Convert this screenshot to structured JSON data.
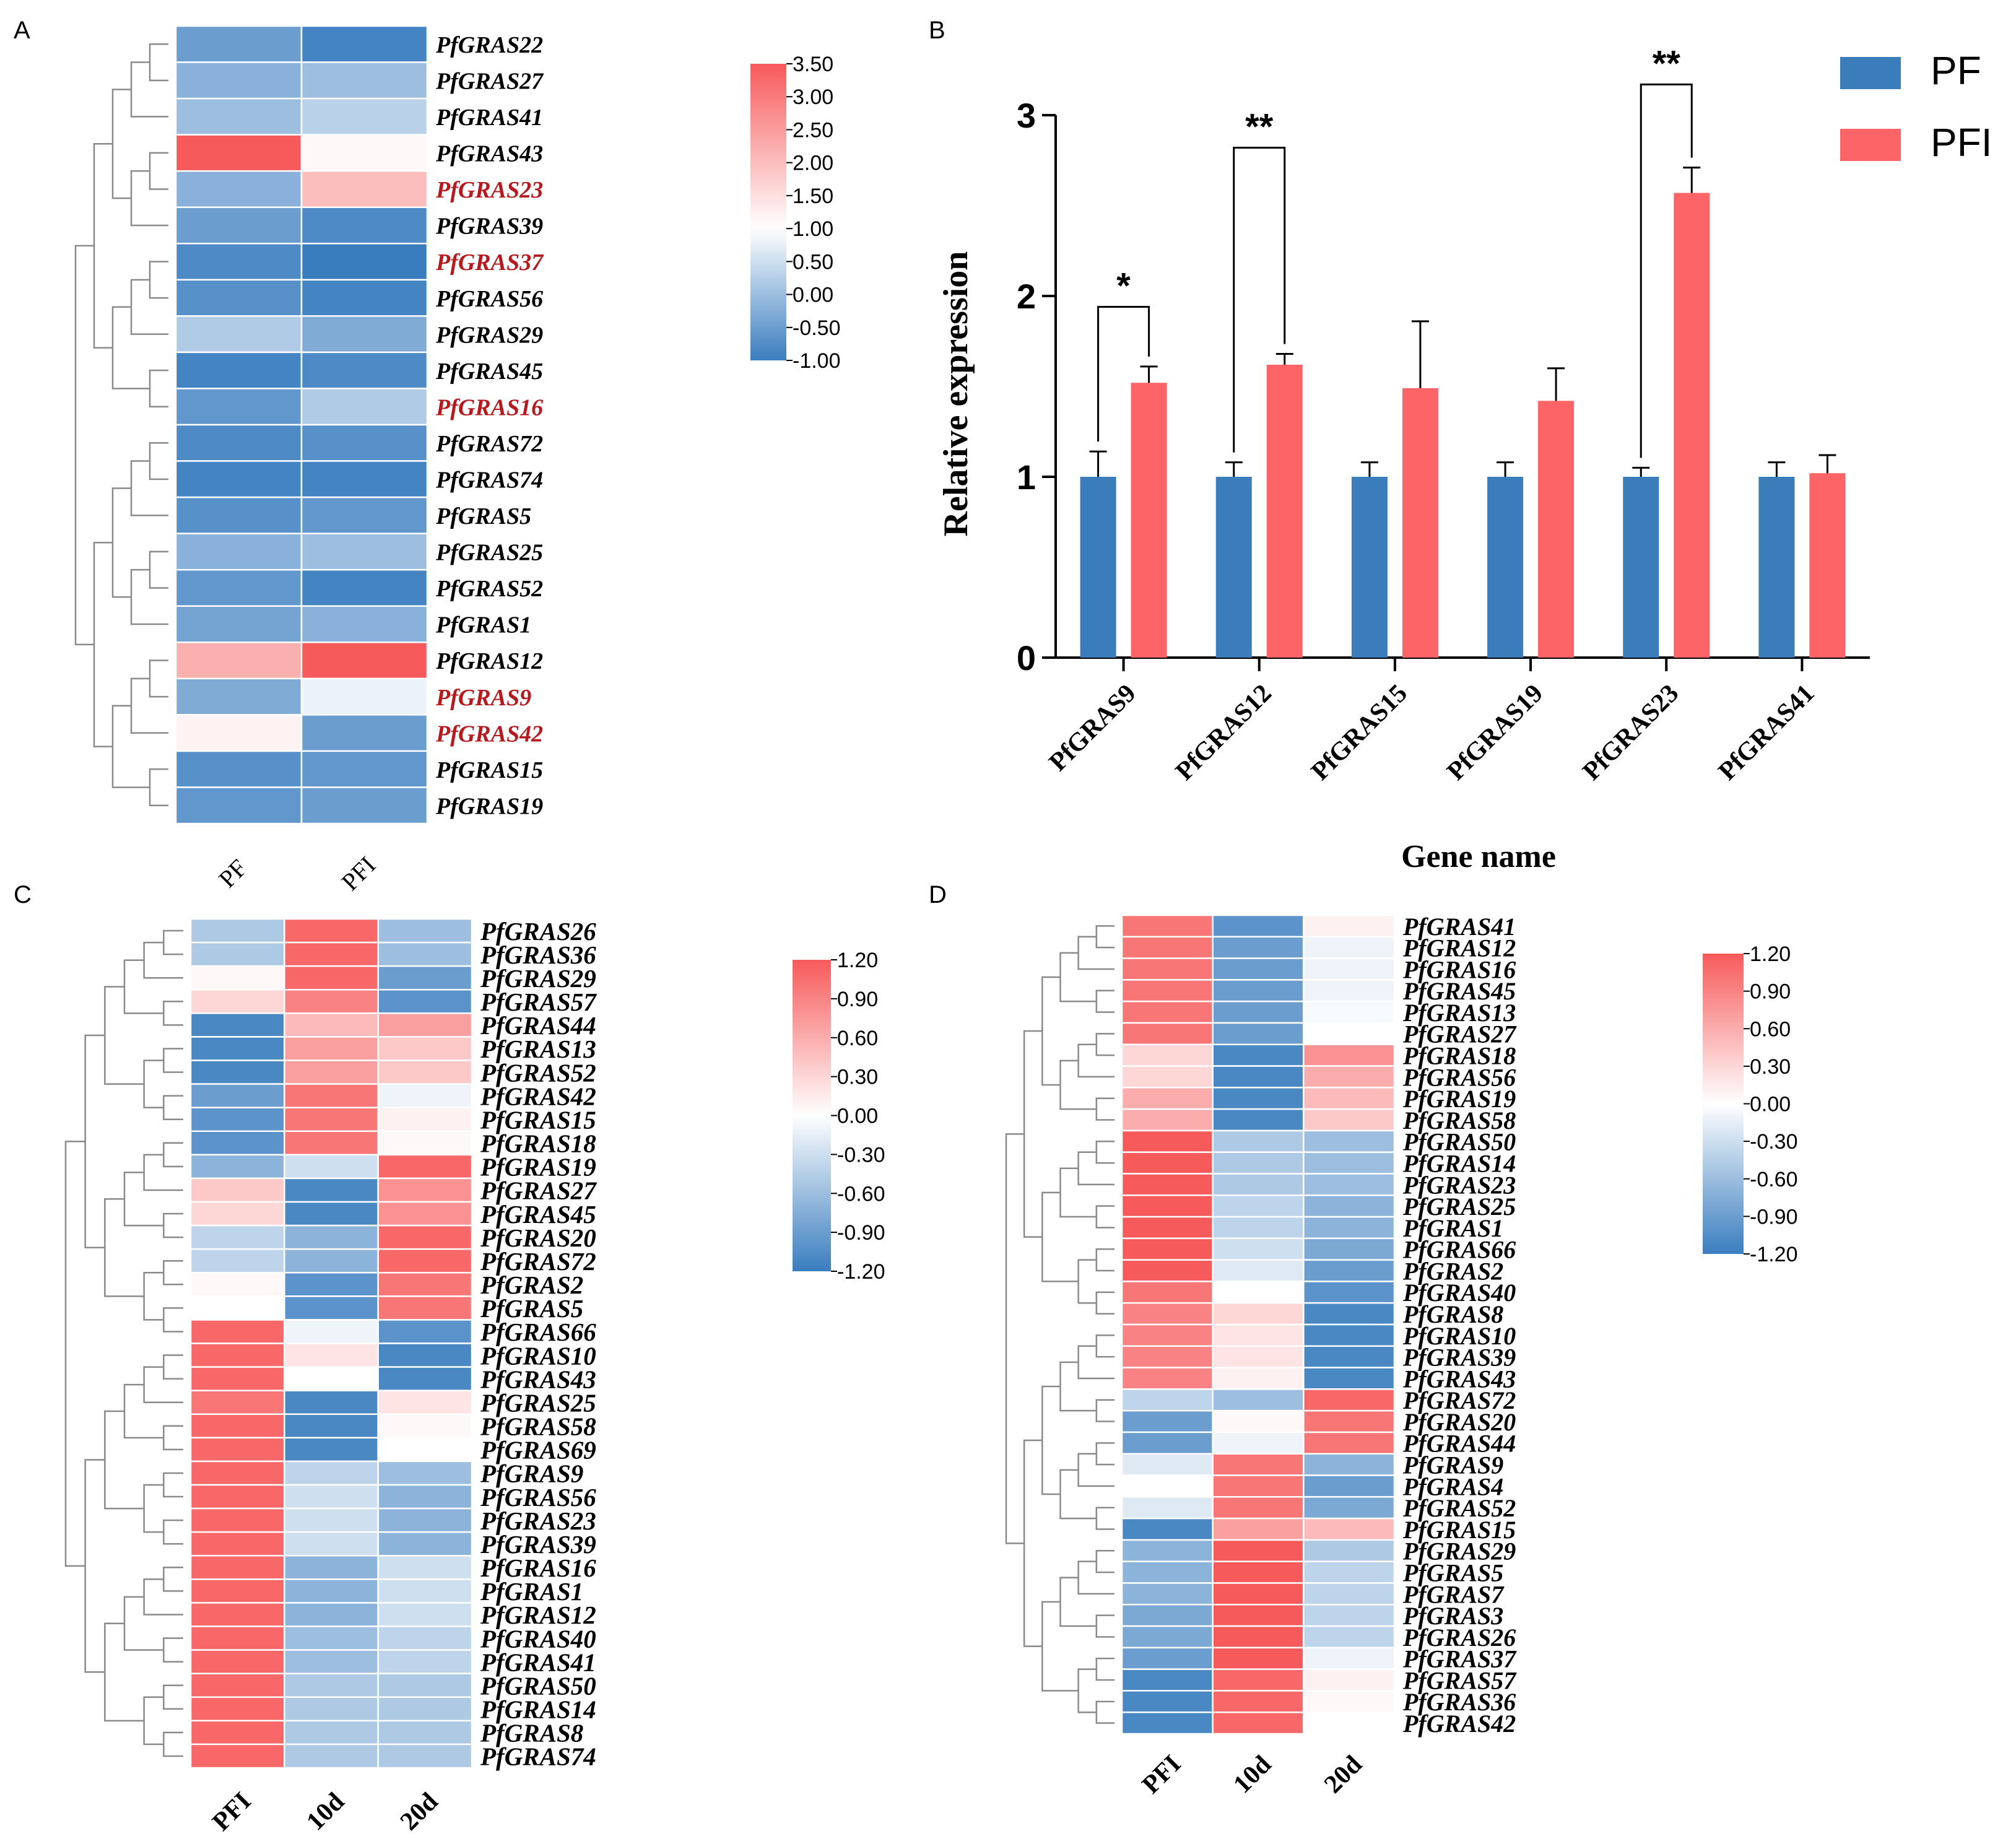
{
  "colors": {
    "high": "#f75a5b",
    "mid": "#ffffff",
    "low": "#3a7dbf",
    "bar_pf": "#3b7dba",
    "bar_pfi": "#fc6467",
    "highlight_text": "#b61a1e"
  },
  "panels": {
    "A": {
      "letter": "A",
      "columns": [
        "PF",
        "PFI"
      ],
      "colorbar": {
        "min": -1.0,
        "max": 3.5,
        "mid": 1.0,
        "ticks": [
          "3.50",
          "3.00",
          "2.50",
          "2.00",
          "1.50",
          "1.00",
          "0.50",
          "0.00",
          "-0.50",
          "-1.00"
        ]
      },
      "rows": [
        {
          "gene": "PfGRAS22",
          "values": [
            -0.5,
            -0.9
          ],
          "highlight": false
        },
        {
          "gene": "PfGRAS27",
          "values": [
            -0.2,
            0.0
          ],
          "highlight": false
        },
        {
          "gene": "PfGRAS41",
          "values": [
            0.0,
            0.3
          ],
          "highlight": false
        },
        {
          "gene": "PfGRAS43",
          "values": [
            3.5,
            1.1
          ],
          "highlight": false
        },
        {
          "gene": "PfGRAS23",
          "values": [
            -0.2,
            2.0
          ],
          "highlight": true
        },
        {
          "gene": "PfGRAS39",
          "values": [
            -0.5,
            -0.8
          ],
          "highlight": false
        },
        {
          "gene": "PfGRAS37",
          "values": [
            -0.8,
            -1.0
          ],
          "highlight": true
        },
        {
          "gene": "PfGRAS56",
          "values": [
            -0.7,
            -0.9
          ],
          "highlight": false
        },
        {
          "gene": "PfGRAS29",
          "values": [
            0.2,
            -0.3
          ],
          "highlight": false
        },
        {
          "gene": "PfGRAS45",
          "values": [
            -0.9,
            -0.8
          ],
          "highlight": false
        },
        {
          "gene": "PfGRAS16",
          "values": [
            -0.6,
            0.2
          ],
          "highlight": true
        },
        {
          "gene": "PfGRAS72",
          "values": [
            -0.8,
            -0.7
          ],
          "highlight": false
        },
        {
          "gene": "PfGRAS74",
          "values": [
            -0.9,
            -0.9
          ],
          "highlight": false
        },
        {
          "gene": "PfGRAS5",
          "values": [
            -0.7,
            -0.6
          ],
          "highlight": false
        },
        {
          "gene": "PfGRAS25",
          "values": [
            -0.2,
            0.0
          ],
          "highlight": false
        },
        {
          "gene": "PfGRAS52",
          "values": [
            -0.6,
            -0.9
          ],
          "highlight": false
        },
        {
          "gene": "PfGRAS1",
          "values": [
            -0.4,
            -0.2
          ],
          "highlight": false
        },
        {
          "gene": "PfGRAS12",
          "values": [
            2.2,
            3.5
          ],
          "highlight": false
        },
        {
          "gene": "PfGRAS9",
          "values": [
            -0.3,
            0.8
          ],
          "highlight": true
        },
        {
          "gene": "PfGRAS42",
          "values": [
            1.2,
            -0.5
          ],
          "highlight": true
        },
        {
          "gene": "PfGRAS15",
          "values": [
            -0.7,
            -0.6
          ],
          "highlight": false
        },
        {
          "gene": "PfGRAS19",
          "values": [
            -0.6,
            -0.5
          ],
          "highlight": false
        }
      ]
    },
    "B": {
      "letter": "B",
      "chart_data": {
        "type": "bar",
        "title": "",
        "xlabel": "Gene name",
        "ylabel": "Relative expression",
        "ylim": [
          0,
          3
        ],
        "yticks": [
          "0",
          "1",
          "2",
          "3"
        ],
        "categories": [
          "PfGRAS9",
          "PfGRAS12",
          "PfGRAS15",
          "PfGRAS19",
          "PfGRAS23",
          "PfGRAS41"
        ],
        "series": [
          {
            "name": "PF",
            "values": [
              1.0,
              1.0,
              1.0,
              1.0,
              1.0,
              1.0
            ],
            "errors": [
              0.14,
              0.08,
              0.08,
              0.08,
              0.05,
              0.08
            ]
          },
          {
            "name": "PFI",
            "values": [
              1.52,
              1.62,
              1.49,
              1.42,
              2.57,
              1.02
            ],
            "errors": [
              0.09,
              0.06,
              0.37,
              0.18,
              0.14,
              0.1
            ]
          }
        ],
        "significance": [
          {
            "category_index": 0,
            "label": "*",
            "height": 1.94
          },
          {
            "category_index": 1,
            "label": "**",
            "height": 2.82
          },
          {
            "category_index": 4,
            "label": "**",
            "height": 3.17
          }
        ],
        "legend_position": "top-right"
      }
    },
    "C": {
      "letter": "C",
      "columns": [
        "PFI",
        "10d",
        "20d"
      ],
      "colorbar": {
        "min": -1.2,
        "max": 1.2,
        "mid": 0.0,
        "ticks": [
          "1.20",
          "0.90",
          "0.60",
          "0.30",
          "0.00",
          "-0.30",
          "-0.60",
          "-0.90",
          "-1.20"
        ]
      },
      "rows": [
        {
          "gene": "PfGRAS26",
          "values": [
            -0.5,
            1.1,
            -0.6
          ]
        },
        {
          "gene": "PfGRAS36",
          "values": [
            -0.5,
            1.1,
            -0.6
          ]
        },
        {
          "gene": "PfGRAS29",
          "values": [
            0.05,
            1.1,
            -0.9
          ]
        },
        {
          "gene": "PfGRAS57",
          "values": [
            0.3,
            0.9,
            -1.0
          ]
        },
        {
          "gene": "PfGRAS44",
          "values": [
            -1.1,
            0.5,
            0.7
          ]
        },
        {
          "gene": "PfGRAS13",
          "values": [
            -1.1,
            0.7,
            0.4
          ]
        },
        {
          "gene": "PfGRAS52",
          "values": [
            -1.1,
            0.7,
            0.4
          ]
        },
        {
          "gene": "PfGRAS42",
          "values": [
            -0.9,
            1.0,
            -0.1
          ]
        },
        {
          "gene": "PfGRAS15",
          "values": [
            -1.0,
            1.0,
            0.1
          ]
        },
        {
          "gene": "PfGRAS18",
          "values": [
            -1.0,
            1.0,
            0.05
          ]
        },
        {
          "gene": "PfGRAS19",
          "values": [
            -0.7,
            -0.3,
            1.1
          ]
        },
        {
          "gene": "PfGRAS27",
          "values": [
            0.4,
            -1.1,
            0.8
          ]
        },
        {
          "gene": "PfGRAS45",
          "values": [
            0.3,
            -1.1,
            0.8
          ]
        },
        {
          "gene": "PfGRAS20",
          "values": [
            -0.4,
            -0.7,
            1.1
          ]
        },
        {
          "gene": "PfGRAS72",
          "values": [
            -0.4,
            -0.7,
            1.1
          ]
        },
        {
          "gene": "PfGRAS2",
          "values": [
            0.05,
            -1.0,
            1.0
          ]
        },
        {
          "gene": "PfGRAS5",
          "values": [
            0.0,
            -1.0,
            1.0
          ]
        },
        {
          "gene": "PfGRAS66",
          "values": [
            1.1,
            -0.1,
            -1.0
          ]
        },
        {
          "gene": "PfGRAS10",
          "values": [
            1.1,
            0.2,
            -1.1
          ]
        },
        {
          "gene": "PfGRAS43",
          "values": [
            1.1,
            0.0,
            -1.1
          ]
        },
        {
          "gene": "PfGRAS25",
          "values": [
            1.0,
            -1.1,
            0.2
          ]
        },
        {
          "gene": "PfGRAS58",
          "values": [
            1.1,
            -1.1,
            0.05
          ]
        },
        {
          "gene": "PfGRAS69",
          "values": [
            1.1,
            -1.1,
            0.0
          ]
        },
        {
          "gene": "PfGRAS9",
          "values": [
            1.1,
            -0.4,
            -0.6
          ]
        },
        {
          "gene": "PfGRAS56",
          "values": [
            1.1,
            -0.3,
            -0.7
          ]
        },
        {
          "gene": "PfGRAS23",
          "values": [
            1.1,
            -0.3,
            -0.7
          ]
        },
        {
          "gene": "PfGRAS39",
          "values": [
            1.1,
            -0.3,
            -0.7
          ]
        },
        {
          "gene": "PfGRAS16",
          "values": [
            1.1,
            -0.7,
            -0.3
          ]
        },
        {
          "gene": "PfGRAS1",
          "values": [
            1.1,
            -0.7,
            -0.3
          ]
        },
        {
          "gene": "PfGRAS12",
          "values": [
            1.1,
            -0.7,
            -0.3
          ]
        },
        {
          "gene": "PfGRAS40",
          "values": [
            1.1,
            -0.6,
            -0.4
          ]
        },
        {
          "gene": "PfGRAS41",
          "values": [
            1.1,
            -0.6,
            -0.4
          ]
        },
        {
          "gene": "PfGRAS50",
          "values": [
            1.1,
            -0.5,
            -0.5
          ]
        },
        {
          "gene": "PfGRAS14",
          "values": [
            1.1,
            -0.5,
            -0.5
          ]
        },
        {
          "gene": "PfGRAS8",
          "values": [
            1.1,
            -0.5,
            -0.5
          ]
        },
        {
          "gene": "PfGRAS74",
          "values": [
            1.1,
            -0.5,
            -0.5
          ]
        }
      ]
    },
    "D": {
      "letter": "D",
      "columns": [
        "PFI",
        "10d",
        "20d"
      ],
      "colorbar": {
        "min": -1.2,
        "max": 1.2,
        "mid": 0.0,
        "ticks": [
          "1.20",
          "0.90",
          "0.60",
          "0.30",
          "0.00",
          "-0.30",
          "-0.60",
          "-0.90",
          "-1.20"
        ]
      },
      "rows": [
        {
          "gene": "PfGRAS41",
          "values": [
            1.0,
            -1.0,
            0.1
          ]
        },
        {
          "gene": "PfGRAS12",
          "values": [
            1.0,
            -0.9,
            -0.1
          ]
        },
        {
          "gene": "PfGRAS16",
          "values": [
            1.0,
            -0.9,
            -0.1
          ]
        },
        {
          "gene": "PfGRAS45",
          "values": [
            1.0,
            -0.9,
            -0.1
          ]
        },
        {
          "gene": "PfGRAS13",
          "values": [
            1.0,
            -0.9,
            -0.05
          ]
        },
        {
          "gene": "PfGRAS27",
          "values": [
            1.0,
            -0.9,
            0.0
          ]
        },
        {
          "gene": "PfGRAS18",
          "values": [
            0.3,
            -1.1,
            0.8
          ]
        },
        {
          "gene": "PfGRAS56",
          "values": [
            0.3,
            -1.1,
            0.6
          ]
        },
        {
          "gene": "PfGRAS19",
          "values": [
            0.6,
            -1.1,
            0.5
          ]
        },
        {
          "gene": "PfGRAS58",
          "values": [
            0.6,
            -1.1,
            0.4
          ]
        },
        {
          "gene": "PfGRAS50",
          "values": [
            1.2,
            -0.5,
            -0.6
          ]
        },
        {
          "gene": "PfGRAS14",
          "values": [
            1.2,
            -0.5,
            -0.6
          ]
        },
        {
          "gene": "PfGRAS23",
          "values": [
            1.2,
            -0.5,
            -0.6
          ]
        },
        {
          "gene": "PfGRAS25",
          "values": [
            1.2,
            -0.4,
            -0.7
          ]
        },
        {
          "gene": "PfGRAS1",
          "values": [
            1.2,
            -0.4,
            -0.7
          ]
        },
        {
          "gene": "PfGRAS66",
          "values": [
            1.2,
            -0.3,
            -0.8
          ]
        },
        {
          "gene": "PfGRAS2",
          "values": [
            1.2,
            -0.2,
            -0.9
          ]
        },
        {
          "gene": "PfGRAS40",
          "values": [
            1.0,
            0.0,
            -1.0
          ]
        },
        {
          "gene": "PfGRAS8",
          "values": [
            0.9,
            0.3,
            -1.1
          ]
        },
        {
          "gene": "PfGRAS10",
          "values": [
            0.9,
            0.2,
            -1.1
          ]
        },
        {
          "gene": "PfGRAS39",
          "values": [
            0.9,
            0.2,
            -1.1
          ]
        },
        {
          "gene": "PfGRAS43",
          "values": [
            0.9,
            0.1,
            -1.1
          ]
        },
        {
          "gene": "PfGRAS72",
          "values": [
            -0.4,
            -0.6,
            1.1
          ]
        },
        {
          "gene": "PfGRAS20",
          "values": [
            -0.9,
            0.05,
            1.0
          ]
        },
        {
          "gene": "PfGRAS44",
          "values": [
            -0.9,
            -0.1,
            1.0
          ]
        },
        {
          "gene": "PfGRAS9",
          "values": [
            -0.2,
            1.0,
            -0.7
          ]
        },
        {
          "gene": "PfGRAS4",
          "values": [
            0.0,
            1.0,
            -0.9
          ]
        },
        {
          "gene": "PfGRAS52",
          "values": [
            -0.2,
            1.0,
            -0.8
          ]
        },
        {
          "gene": "PfGRAS15",
          "values": [
            -1.1,
            0.7,
            0.5
          ]
        },
        {
          "gene": "PfGRAS29",
          "values": [
            -0.7,
            1.2,
            -0.5
          ]
        },
        {
          "gene": "PfGRAS5",
          "values": [
            -0.7,
            1.2,
            -0.4
          ]
        },
        {
          "gene": "PfGRAS7",
          "values": [
            -0.7,
            1.2,
            -0.4
          ]
        },
        {
          "gene": "PfGRAS3",
          "values": [
            -0.8,
            1.2,
            -0.4
          ]
        },
        {
          "gene": "PfGRAS26",
          "values": [
            -0.8,
            1.2,
            -0.4
          ]
        },
        {
          "gene": "PfGRAS37",
          "values": [
            -0.9,
            1.2,
            -0.1
          ]
        },
        {
          "gene": "PfGRAS57",
          "values": [
            -1.1,
            1.1,
            0.1
          ]
        },
        {
          "gene": "PfGRAS36",
          "values": [
            -1.1,
            1.1,
            0.05
          ]
        },
        {
          "gene": "PfGRAS42",
          "values": [
            -1.1,
            1.1,
            0.0
          ]
        }
      ]
    }
  }
}
